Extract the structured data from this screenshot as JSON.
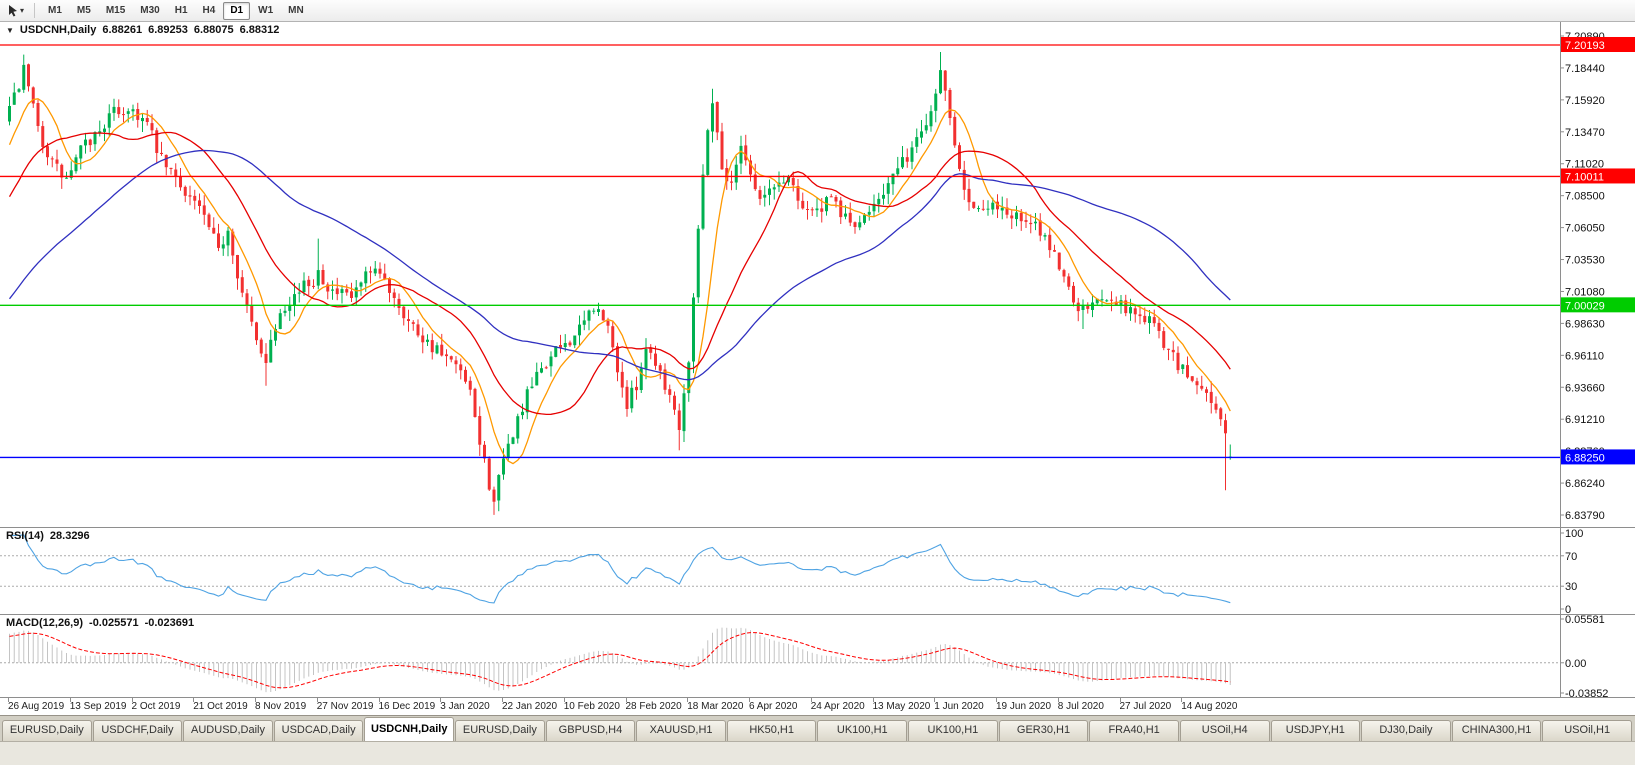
{
  "toolbar": {
    "timeframes": [
      "M1",
      "M5",
      "M15",
      "M30",
      "H1",
      "H4",
      "D1",
      "W1",
      "MN"
    ],
    "active": "D1"
  },
  "header": {
    "collapse_icon": "▼",
    "symbol": "USDCNH,Daily",
    "open": "6.88261",
    "high": "6.89253",
    "low": "6.88075",
    "close": "6.88312"
  },
  "rsi": {
    "name": "RSI(14)",
    "value": "28.3296",
    "levels": [
      "100",
      "70",
      "30",
      "0"
    ],
    "upper": 70,
    "lower": 30,
    "color": "#4FA3E3"
  },
  "macd": {
    "name": "MACD(12,26,9)",
    "main_value": "-0.025571",
    "signal_value": "-0.023691",
    "axis": [
      "0.05581",
      "0.00",
      "-0.03852"
    ],
    "display_max": 0.05581,
    "display_min": -0.03852,
    "hist_color": "#C4C4C4",
    "signal_color": "#FF0000",
    "zero_line_color": "#A8A8A8"
  },
  "dates": [
    "26 Aug 2019",
    "13 Sep 2019",
    "2 Oct 2019",
    "21 Oct 2019",
    "8 Nov 2019",
    "27 Nov 2019",
    "16 Dec 2019",
    "3 Jan 2020",
    "22 Jan 2020",
    "10 Feb 2020",
    "28 Feb 2020",
    "18 Mar 2020",
    "6 Apr 2020",
    "24 Apr 2020",
    "13 May 2020",
    "1 Jun 2020",
    "19 Jun 2020",
    "8 Jul 2020",
    "27 Jul 2020",
    "14 Aug 2020"
  ],
  "tabs": [
    {
      "label": "EURUSD,Daily",
      "active": false
    },
    {
      "label": "USDCHF,Daily",
      "active": false
    },
    {
      "label": "AUDUSD,Daily",
      "active": false
    },
    {
      "label": "USDCAD,Daily",
      "active": false
    },
    {
      "label": "USDCNH,Daily",
      "active": true
    },
    {
      "label": "EURUSD,Daily",
      "active": false
    },
    {
      "label": "GBPUSD,H4",
      "active": false
    },
    {
      "label": "XAUUSD,H1",
      "active": false
    },
    {
      "label": "HK50,H1",
      "active": false
    },
    {
      "label": "UK100,H1",
      "active": false
    },
    {
      "label": "UK100,H1",
      "active": false
    },
    {
      "label": "GER30,H1",
      "active": false
    },
    {
      "label": "FRA40,H1",
      "active": false
    },
    {
      "label": "USOil,H4",
      "active": false
    },
    {
      "label": "USDJPY,H1",
      "active": false
    },
    {
      "label": "DJ30,Daily",
      "active": false
    },
    {
      "label": "CHINA300,H1",
      "active": false
    },
    {
      "label": "USOil,H1",
      "active": false
    }
  ],
  "chart_data": {
    "type": "candlestick",
    "symbol": "USDCNH",
    "period": "Daily",
    "title": "USDCNH,Daily 6.88261 6.89253 6.88075 6.88312",
    "visible_range": {
      "price_min": 6.8379,
      "price_max": 7.2089,
      "first_date": "26 Aug 2019",
      "last_date": "14 Aug 2020"
    },
    "price_axis": [
      "7.20890",
      "7.18440",
      "7.15920",
      "7.13470",
      "7.11020",
      "7.08500",
      "7.06050",
      "7.03530",
      "7.01080",
      "6.98630",
      "6.96110",
      "6.93660",
      "6.91210",
      "6.88760",
      "6.86240",
      "6.83790"
    ],
    "bars": 258,
    "seed": 7,
    "warmup_bars": 60,
    "pre_anchors": [
      [
        -60,
        6.895
      ],
      [
        -45,
        6.922
      ],
      [
        -30,
        6.984
      ],
      [
        -18,
        7.042
      ],
      [
        -8,
        7.088
      ],
      [
        -1,
        7.142
      ]
    ],
    "anchors": [
      [
        0,
        7.15
      ],
      [
        3,
        7.182
      ],
      [
        6,
        7.136
      ],
      [
        9,
        7.11
      ],
      [
        12,
        7.097
      ],
      [
        15,
        7.12
      ],
      [
        18,
        7.132
      ],
      [
        22,
        7.15
      ],
      [
        26,
        7.152
      ],
      [
        29,
        7.14
      ],
      [
        32,
        7.112
      ],
      [
        36,
        7.094
      ],
      [
        40,
        7.076
      ],
      [
        44,
        7.042
      ],
      [
        46,
        7.06
      ],
      [
        49,
        7.01
      ],
      [
        52,
        6.972
      ],
      [
        54,
        6.96
      ],
      [
        57,
        6.998
      ],
      [
        61,
        7.012
      ],
      [
        64,
        7.02
      ],
      [
        65,
        7.028
      ],
      [
        68,
        7.01
      ],
      [
        72,
        7.006
      ],
      [
        75,
        7.022
      ],
      [
        78,
        7.024
      ],
      [
        81,
        7.008
      ],
      [
        84,
        6.988
      ],
      [
        88,
        6.972
      ],
      [
        92,
        6.958
      ],
      [
        95,
        6.948
      ],
      [
        97,
        6.93
      ],
      [
        99,
        6.895
      ],
      [
        101,
        6.862
      ],
      [
        102,
        6.85
      ],
      [
        104,
        6.878
      ],
      [
        106,
        6.902
      ],
      [
        109,
        6.93
      ],
      [
        112,
        6.952
      ],
      [
        116,
        6.968
      ],
      [
        120,
        6.98
      ],
      [
        123,
        7.0
      ],
      [
        126,
        6.982
      ],
      [
        128,
        6.952
      ],
      [
        130,
        6.922
      ],
      [
        132,
        6.94
      ],
      [
        134,
        6.968
      ],
      [
        136,
        6.958
      ],
      [
        138,
        6.94
      ],
      [
        140,
        6.92
      ],
      [
        141,
        6.908
      ],
      [
        143,
        6.96
      ],
      [
        145,
        7.06
      ],
      [
        147,
        7.14
      ],
      [
        148,
        7.158
      ],
      [
        150,
        7.108
      ],
      [
        152,
        7.092
      ],
      [
        154,
        7.128
      ],
      [
        156,
        7.102
      ],
      [
        158,
        7.082
      ],
      [
        161,
        7.092
      ],
      [
        164,
        7.1
      ],
      [
        167,
        7.078
      ],
      [
        170,
        7.072
      ],
      [
        173,
        7.082
      ],
      [
        176,
        7.068
      ],
      [
        179,
        7.06
      ],
      [
        182,
        7.082
      ],
      [
        185,
        7.094
      ],
      [
        188,
        7.11
      ],
      [
        191,
        7.128
      ],
      [
        194,
        7.152
      ],
      [
        196,
        7.183
      ],
      [
        198,
        7.15
      ],
      [
        200,
        7.108
      ],
      [
        202,
        7.082
      ],
      [
        205,
        7.072
      ],
      [
        208,
        7.078
      ],
      [
        211,
        7.07
      ],
      [
        214,
        7.064
      ],
      [
        217,
        7.058
      ],
      [
        220,
        7.04
      ],
      [
        222,
        7.022
      ],
      [
        224,
        7.006
      ],
      [
        226,
        6.996
      ],
      [
        229,
        7.004
      ],
      [
        232,
        7.008
      ],
      [
        235,
        6.998
      ],
      [
        238,
        6.992
      ],
      [
        240,
        6.99
      ],
      [
        242,
        6.978
      ],
      [
        244,
        6.966
      ],
      [
        246,
        6.954
      ],
      [
        248,
        6.946
      ],
      [
        250,
        6.938
      ],
      [
        252,
        6.934
      ],
      [
        254,
        6.92
      ],
      [
        255,
        6.912
      ],
      [
        256,
        6.897
      ],
      [
        257,
        6.883
      ]
    ],
    "overrides": {
      "3": {
        "h": 7.1945
      },
      "54": {
        "l": 6.938
      },
      "65": {
        "h": 7.052
      },
      "102": {
        "l": 6.838
      },
      "141": {
        "l": 6.888
      },
      "148": {
        "h": 7.168
      },
      "196": {
        "h": 7.1965
      },
      "226": {
        "l": 6.982
      },
      "256": {
        "l": 6.857
      },
      "257": {
        "o": 6.88261,
        "h": 6.89253,
        "l": 6.88075,
        "c": 6.88312
      }
    },
    "last_bar": {
      "open": 6.88261,
      "high": 6.89253,
      "low": 6.88075,
      "close": 6.88312
    },
    "colors": {
      "up": "#00B050",
      "down": "#F23030"
    },
    "moving_averages": [
      {
        "period": 8,
        "color": "#FF9900"
      },
      {
        "period": 21,
        "color": "#E60000"
      },
      {
        "period": 55,
        "color": "#3030C0"
      }
    ],
    "hlines": [
      {
        "price": 7.20193,
        "label": "7.20193",
        "color": "#FF0000"
      },
      {
        "price": 7.10011,
        "label": "7.10011",
        "color": "#FF0000"
      },
      {
        "price": 7.00029,
        "label": "7.00029",
        "color": "#00CC00"
      },
      {
        "price": 6.8825,
        "label": "6.88250",
        "color": "#0000FF"
      }
    ],
    "indicators": {
      "rsi": {
        "period": 14,
        "last": "28.3296"
      },
      "macd": {
        "fast": 12,
        "slow": 26,
        "signal": 9,
        "last": "-0.025571",
        "last_signal": "-0.023691"
      }
    }
  }
}
